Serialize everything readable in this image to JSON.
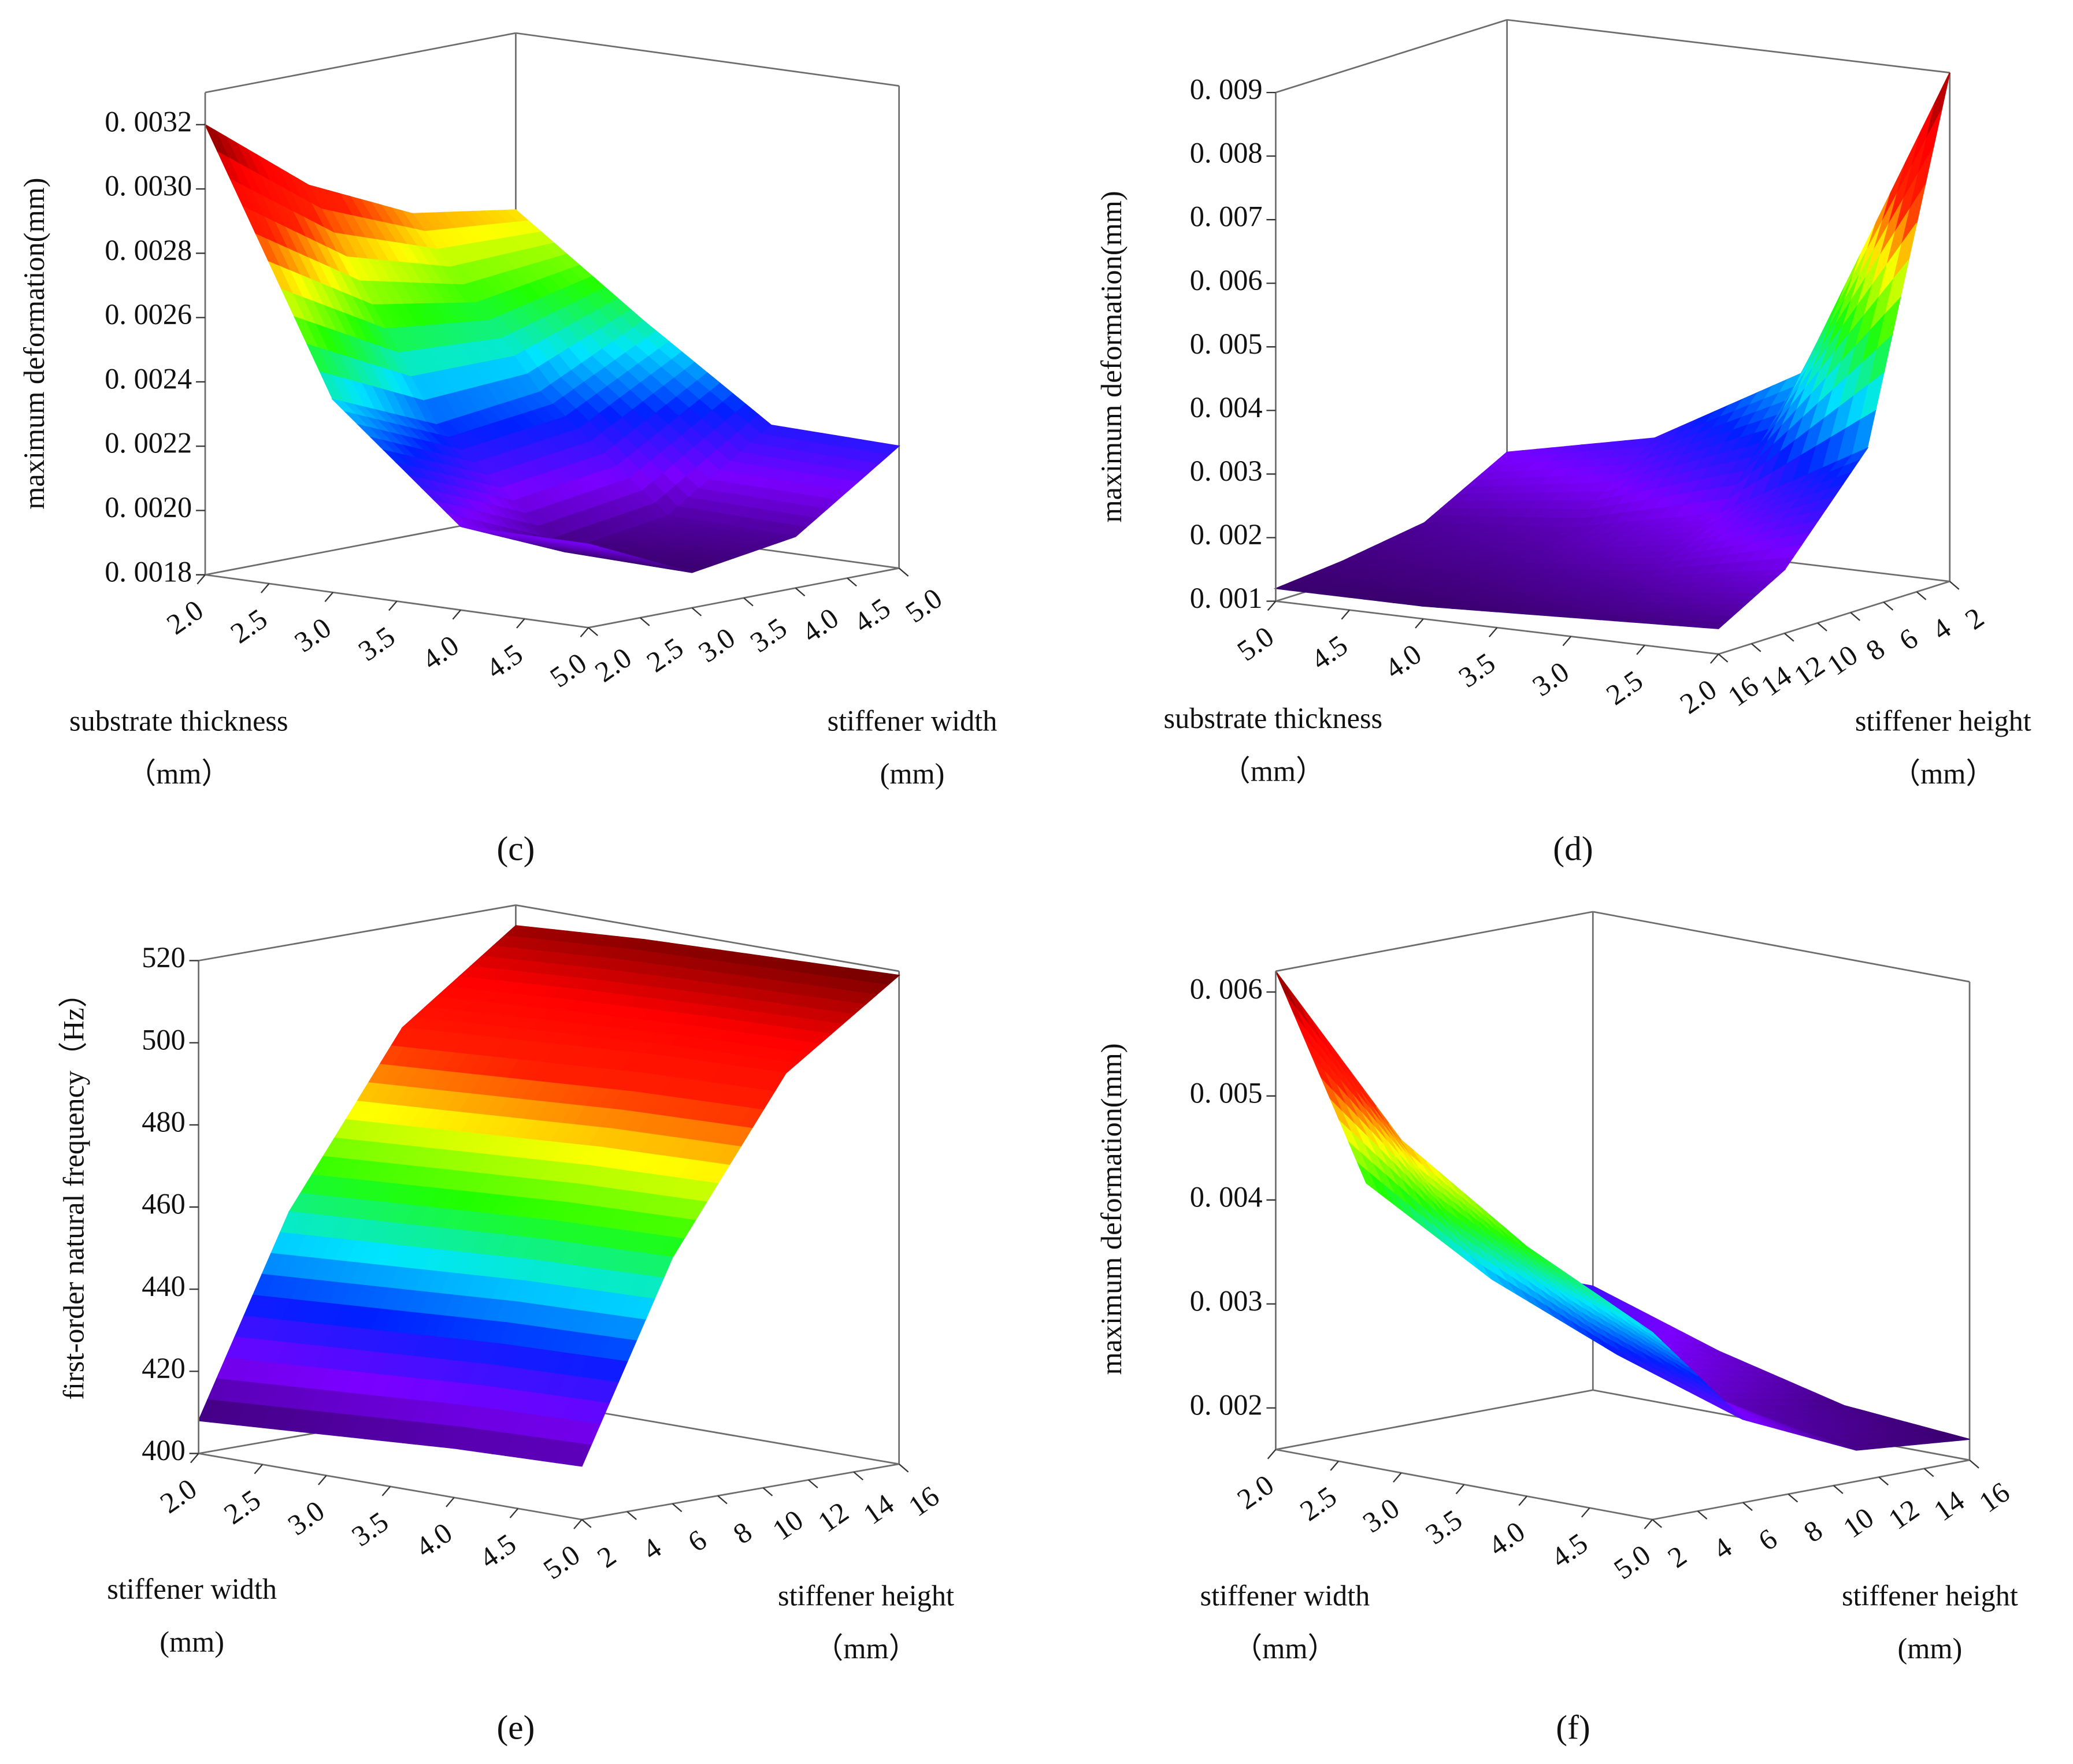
{
  "chart_data": [
    {
      "type": "surface3d",
      "title": "(c)",
      "zlabel": "maximum deformation(mm)",
      "xlabel": [
        "substrate thickness",
        "（mm）"
      ],
      "ylabel": [
        "stiffener width",
        "(mm)"
      ],
      "x": [
        2,
        3,
        4,
        5
      ],
      "y": [
        2,
        3,
        4,
        5
      ],
      "z": [
        [
          0.0032,
          0.00295,
          0.0028,
          0.00275
        ],
        [
          0.0024,
          0.00226,
          0.0023,
          0.00246
        ],
        [
          0.00206,
          0.00192,
          0.00197,
          0.00219
        ],
        [
          0.00206,
          0.00191,
          0.00196,
          0.00218
        ]
      ],
      "xlim": [
        2,
        5
      ],
      "ylim": [
        2,
        5
      ],
      "zlim": [
        0.0018,
        0.0033
      ],
      "xticks": [
        {
          "value": 2,
          "label": "2.0"
        },
        {
          "value": 2.5,
          "label": "2.5"
        },
        {
          "value": 3,
          "label": "3.0"
        },
        {
          "value": 3.5,
          "label": "3.5"
        },
        {
          "value": 4,
          "label": "4.0"
        },
        {
          "value": 4.5,
          "label": "4.5"
        },
        {
          "value": 5,
          "label": "5.0"
        }
      ],
      "yticks": [
        {
          "value": 2,
          "label": "2.0"
        },
        {
          "value": 2.5,
          "label": "2.5"
        },
        {
          "value": 3,
          "label": "3.0"
        },
        {
          "value": 3.5,
          "label": "3.5"
        },
        {
          "value": 4,
          "label": "4.0"
        },
        {
          "value": 4.5,
          "label": "4.5"
        },
        {
          "value": 5,
          "label": "5.0"
        }
      ],
      "zticks": [
        {
          "value": 0.0018,
          "label": "0. 0018"
        },
        {
          "value": 0.002,
          "label": "0. 0020"
        },
        {
          "value": 0.0022,
          "label": "0. 0022"
        },
        {
          "value": 0.0024,
          "label": "0. 0024"
        },
        {
          "value": 0.0026,
          "label": "0. 0026"
        },
        {
          "value": 0.0028,
          "label": "0. 0028"
        },
        {
          "value": 0.003,
          "label": "0. 0030"
        },
        {
          "value": 0.0032,
          "label": "0. 0032"
        }
      ],
      "colormap": [
        "#3a006e",
        "#7b00ff",
        "#0020ff",
        "#00e5ff",
        "#20ff00",
        "#ffff00",
        "#ff2000",
        "#ff0000",
        "#700000"
      ]
    },
    {
      "type": "surface3d",
      "title": "(d)",
      "zlabel": "maximum deformation(mm)",
      "xlabel": [
        "substrate thickness",
        "（mm）"
      ],
      "ylabel": [
        "stiffener height",
        "（mm）"
      ],
      "x": [
        5,
        4,
        3,
        2
      ],
      "y": [
        16,
        12,
        7,
        2
      ],
      "z": [
        [
          0.0012,
          0.0013,
          0.0015,
          0.0022
        ],
        [
          0.0012,
          0.0014,
          0.0017,
          0.0027
        ],
        [
          0.0013,
          0.0016,
          0.0022,
          0.004
        ],
        [
          0.0014,
          0.002,
          0.0035,
          0.009
        ]
      ],
      "xlim": [
        5,
        2
      ],
      "ylim": [
        16,
        2
      ],
      "zlim": [
        0.001,
        0.009
      ],
      "xticks": [
        {
          "value": 5,
          "label": "5.0"
        },
        {
          "value": 4.5,
          "label": "4.5"
        },
        {
          "value": 4,
          "label": "4.0"
        },
        {
          "value": 3.5,
          "label": "3.5"
        },
        {
          "value": 3,
          "label": "3.0"
        },
        {
          "value": 2.5,
          "label": "2.5"
        },
        {
          "value": 2,
          "label": "2.0"
        }
      ],
      "yticks": [
        16,
        14,
        12,
        10,
        8,
        6,
        4,
        2
      ],
      "zticks": [
        {
          "value": 0.001,
          "label": "0. 001"
        },
        {
          "value": 0.002,
          "label": "0. 002"
        },
        {
          "value": 0.003,
          "label": "0. 003"
        },
        {
          "value": 0.004,
          "label": "0. 004"
        },
        {
          "value": 0.005,
          "label": "0. 005"
        },
        {
          "value": 0.006,
          "label": "0. 006"
        },
        {
          "value": 0.007,
          "label": "0. 007"
        },
        {
          "value": 0.008,
          "label": "0. 008"
        },
        {
          "value": 0.009,
          "label": "0. 009"
        }
      ],
      "colormap": [
        "#3a006e",
        "#7b00ff",
        "#0020ff",
        "#00e5ff",
        "#20ff00",
        "#ffff00",
        "#ff2000",
        "#ff0000",
        "#700000"
      ]
    },
    {
      "type": "surface3d",
      "title": "(e)",
      "zlabel": "first-order natural frequency（Hz）",
      "xlabel": [
        "stiffener width",
        "(mm)"
      ],
      "ylabel": [
        "stiffener height",
        "（mm）"
      ],
      "x": [
        2,
        3,
        4,
        5
      ],
      "y": [
        2,
        6,
        11,
        16
      ],
      "z": [
        [
          408,
          455,
          495,
          515
        ],
        [
          410,
          457,
          497,
          517
        ],
        [
          412,
          459,
          499,
          518
        ],
        [
          413,
          460,
          500,
          519
        ]
      ],
      "xlim": [
        2,
        5
      ],
      "ylim": [
        2,
        16
      ],
      "zlim": [
        400,
        520
      ],
      "xticks": [
        {
          "value": 2,
          "label": "2.0"
        },
        {
          "value": 2.5,
          "label": "2.5"
        },
        {
          "value": 3,
          "label": "3.0"
        },
        {
          "value": 3.5,
          "label": "3.5"
        },
        {
          "value": 4,
          "label": "4.0"
        },
        {
          "value": 4.5,
          "label": "4.5"
        },
        {
          "value": 5,
          "label": "5.0"
        }
      ],
      "yticks": [
        2,
        4,
        6,
        8,
        10,
        12,
        14,
        16
      ],
      "zticks": [
        400,
        420,
        440,
        460,
        480,
        500,
        520
      ],
      "colormap": [
        "#3a006e",
        "#7b00ff",
        "#0020ff",
        "#00e5ff",
        "#20ff00",
        "#ffff00",
        "#ff2000",
        "#ff0000",
        "#700000"
      ]
    },
    {
      "type": "surface3d",
      "title": "(f)",
      "zlabel": "maximum deformation(mm)",
      "xlabel": [
        "stiffener width",
        "（mm）"
      ],
      "ylabel": [
        "stiffener height",
        "(mm)"
      ],
      "x": [
        2,
        3,
        4,
        5
      ],
      "y": [
        2,
        6,
        11,
        16
      ],
      "z": [
        [
          0.0062,
          0.004,
          0.003,
          0.0026
        ],
        [
          0.0048,
          0.0033,
          0.0025,
          0.0022
        ],
        [
          0.004,
          0.0028,
          0.0021,
          0.0019
        ],
        [
          0.0034,
          0.0024,
          0.0019,
          0.0018
        ]
      ],
      "xlim": [
        2,
        5
      ],
      "ylim": [
        2,
        16
      ],
      "zlim": [
        0.0016,
        0.0062
      ],
      "xticks": [
        {
          "value": 2,
          "label": "2.0"
        },
        {
          "value": 2.5,
          "label": "2.5"
        },
        {
          "value": 3,
          "label": "3.0"
        },
        {
          "value": 3.5,
          "label": "3.5"
        },
        {
          "value": 4,
          "label": "4.0"
        },
        {
          "value": 4.5,
          "label": "4.5"
        },
        {
          "value": 5,
          "label": "5.0"
        }
      ],
      "yticks": [
        2,
        4,
        6,
        8,
        10,
        12,
        14,
        16
      ],
      "zticks": [
        {
          "value": 0.002,
          "label": "0. 002"
        },
        {
          "value": 0.003,
          "label": "0. 003"
        },
        {
          "value": 0.004,
          "label": "0. 004"
        },
        {
          "value": 0.005,
          "label": "0. 005"
        },
        {
          "value": 0.006,
          "label": "0. 006"
        }
      ],
      "colormap": [
        "#3a006e",
        "#7b00ff",
        "#0020ff",
        "#00e5ff",
        "#20ff00",
        "#ffff00",
        "#ff2000",
        "#ff0000",
        "#700000"
      ]
    }
  ]
}
